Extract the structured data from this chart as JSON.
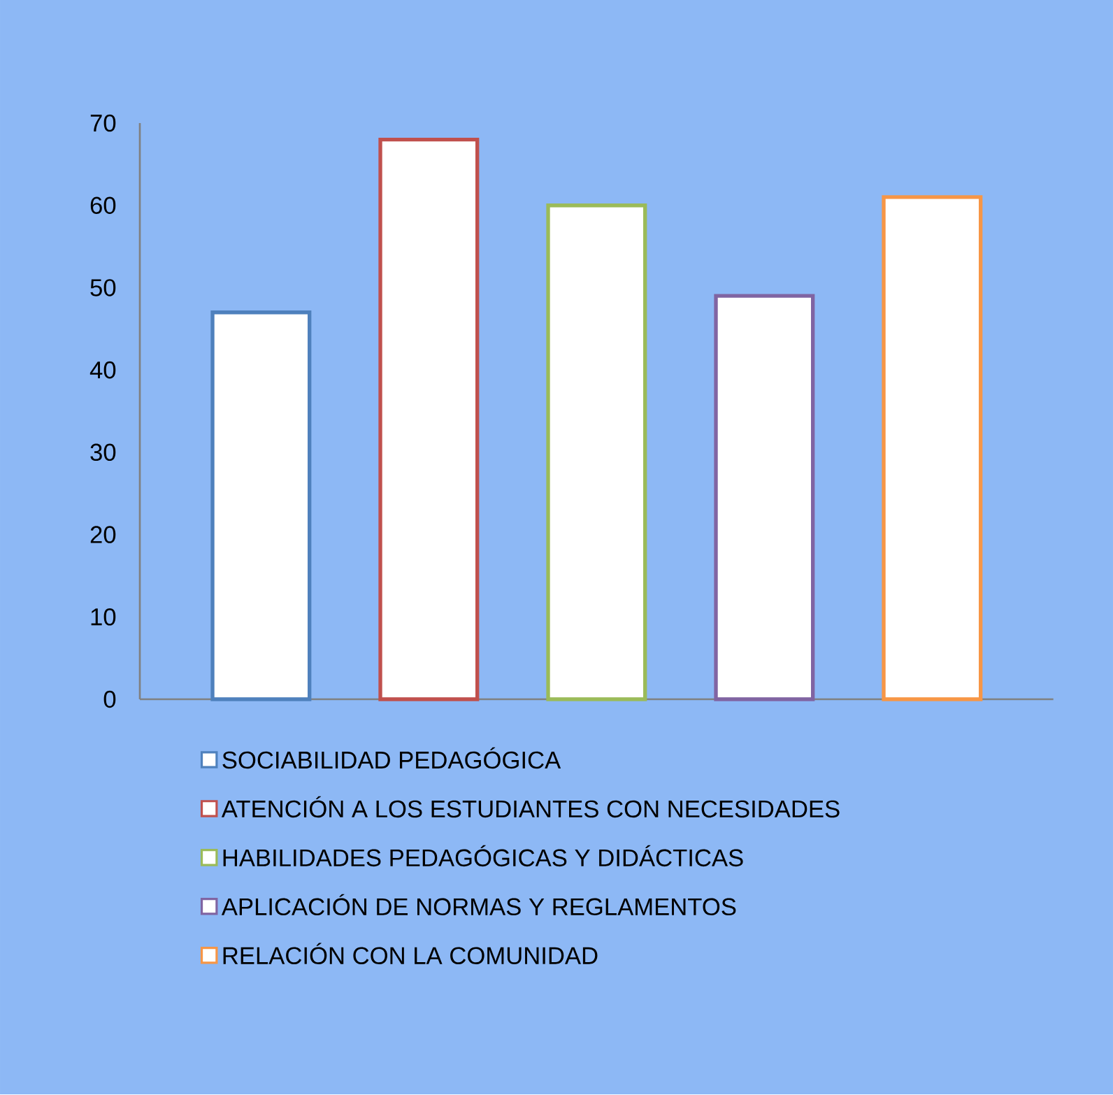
{
  "chart_data": {
    "type": "bar",
    "categories": [
      null
    ],
    "series": [
      {
        "name": "SOCIABILIDAD PEDAGÓGICA",
        "color": "#4f81bd",
        "values": [
          47
        ]
      },
      {
        "name": "ATENCIÓN A LOS ESTUDIANTES CON NECESIDADES",
        "color": "#c0504d",
        "values": [
          68
        ]
      },
      {
        "name": "HABILIDADES PEDAGÓGICAS Y DIDÁCTICAS",
        "color": "#9bbb59",
        "values": [
          60
        ]
      },
      {
        "name": "APLICACIÓN DE NORMAS Y REGLAMENTOS",
        "color": "#8064a2",
        "values": [
          49
        ]
      },
      {
        "name": "RELACIÓN CON LA COMUNIDAD",
        "color": "#f79646",
        "values": [
          61
        ]
      }
    ],
    "ylim": [
      0,
      70
    ],
    "yticks": [
      0,
      10,
      20,
      30,
      40,
      50,
      60,
      70
    ],
    "legend": "bottom"
  }
}
